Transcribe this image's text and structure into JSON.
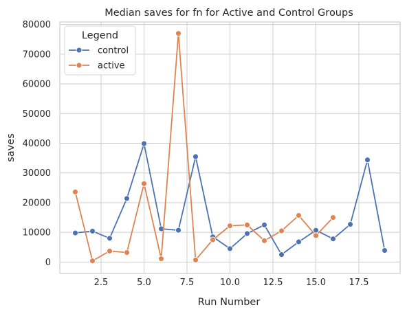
{
  "chart_data": {
    "type": "line",
    "title": "Median saves for fn for Active and Control Groups",
    "xlabel": "Run Number",
    "ylabel": "saves",
    "xlim": [
      0.1,
      19.9
    ],
    "ylim": [
      -3850,
      80850
    ],
    "xticks": [
      2.5,
      5.0,
      7.5,
      10.0,
      12.5,
      15.0,
      17.5
    ],
    "xtick_labels": [
      "2.5",
      "5.0",
      "7.5",
      "10.0",
      "12.5",
      "15.0",
      "17.5"
    ],
    "yticks": [
      0,
      10000,
      20000,
      30000,
      40000,
      50000,
      60000,
      70000,
      80000
    ],
    "ytick_labels": [
      "0",
      "10000",
      "20000",
      "30000",
      "40000",
      "50000",
      "60000",
      "70000",
      "80000"
    ],
    "grid": true,
    "legend": {
      "title": "Legend",
      "position": "top-left"
    },
    "series": [
      {
        "name": "control",
        "color": "#4c72b0",
        "x": [
          1,
          2,
          3,
          4,
          5,
          6,
          7,
          8,
          9,
          10,
          11,
          12,
          13,
          14,
          15,
          16,
          17,
          18,
          19
        ],
        "y": [
          9800,
          10400,
          8000,
          21400,
          39900,
          11200,
          10700,
          35500,
          8500,
          4500,
          9600,
          12500,
          2500,
          6800,
          10700,
          7800,
          12700,
          34400,
          3900
        ]
      },
      {
        "name": "active",
        "color": "#dd8452",
        "x": [
          1,
          2,
          3,
          4,
          5,
          6,
          7,
          8,
          9,
          10,
          11,
          12,
          13,
          14,
          15,
          16
        ],
        "y": [
          23600,
          400,
          3700,
          3200,
          26400,
          1100,
          77000,
          700,
          7500,
          12200,
          12500,
          7200,
          10500,
          15700,
          8900,
          15000
        ]
      }
    ]
  }
}
